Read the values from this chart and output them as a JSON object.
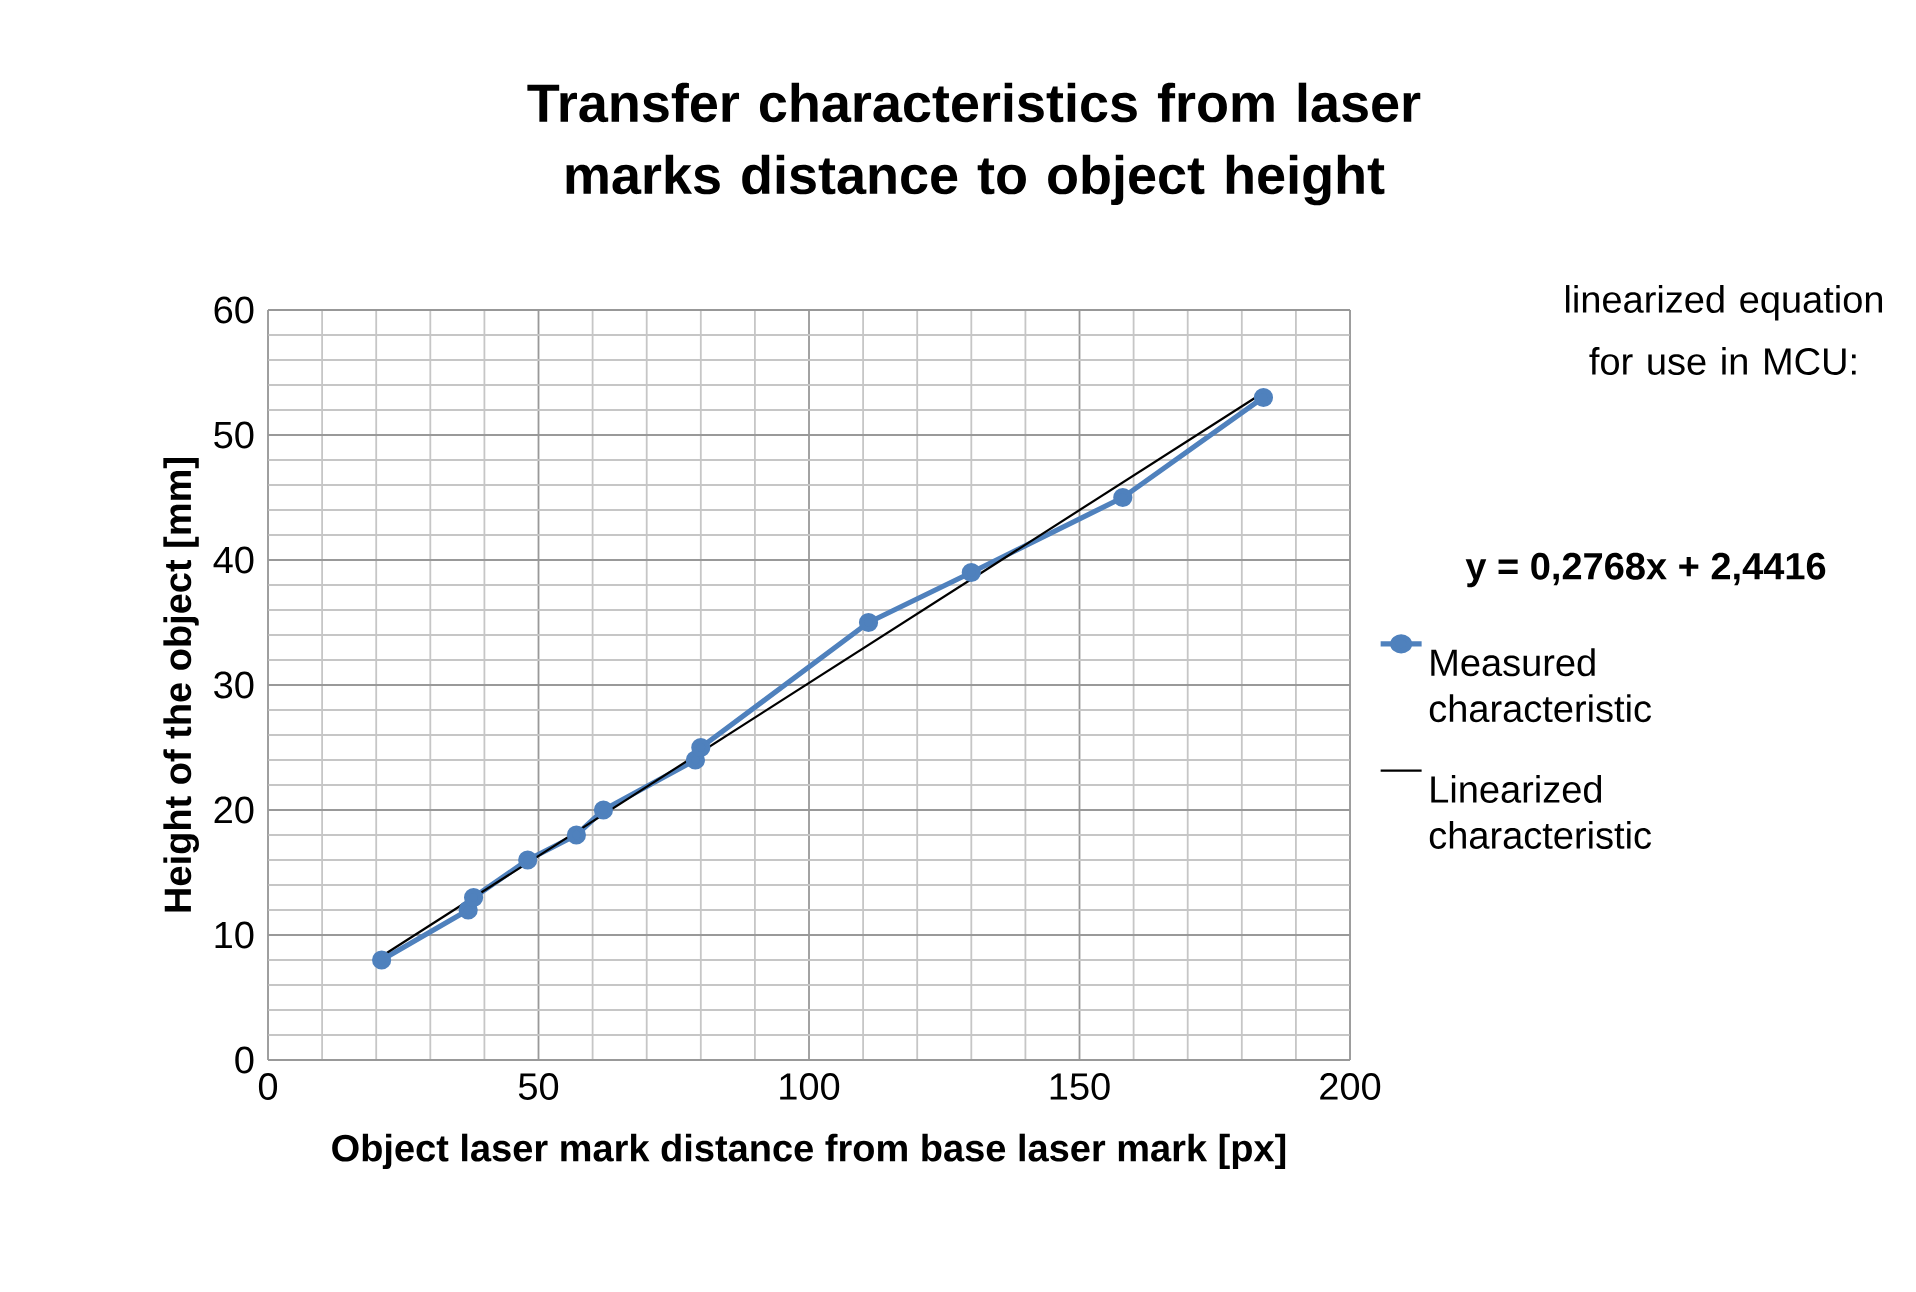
{
  "chart_data": {
    "type": "line",
    "title": "Transfer characteristics from laser marks distance to object height",
    "xlabel": "Object laser mark distance from base laser mark [px]",
    "ylabel": "Height of the object [mm]",
    "annotations": [
      "linearized equation for use in MCU:",
      "y = 0,2768x + 2,4416"
    ],
    "series": [
      {
        "name": "Measured characteristic",
        "color": "#4f81bd",
        "marker": "circle",
        "x": [
          21,
          37,
          38,
          48,
          57,
          62,
          79,
          80,
          111,
          130,
          158,
          184
        ],
        "values": [
          8,
          12,
          13,
          16,
          18,
          20,
          24,
          25,
          35,
          39,
          45,
          53
        ]
      },
      {
        "name": "Linearized characteristic",
        "color": "#000000",
        "marker": "none",
        "x": [
          21,
          184
        ],
        "values": [
          8.3,
          53.4
        ]
      }
    ],
    "xlim": [
      0,
      200
    ],
    "ylim": [
      0,
      60
    ],
    "xticks": [
      0,
      50,
      100,
      150,
      200
    ],
    "yticks": [
      0,
      10,
      20,
      30,
      40,
      50,
      60
    ],
    "grid": true,
    "legend": "right",
    "line_style": "solid"
  }
}
